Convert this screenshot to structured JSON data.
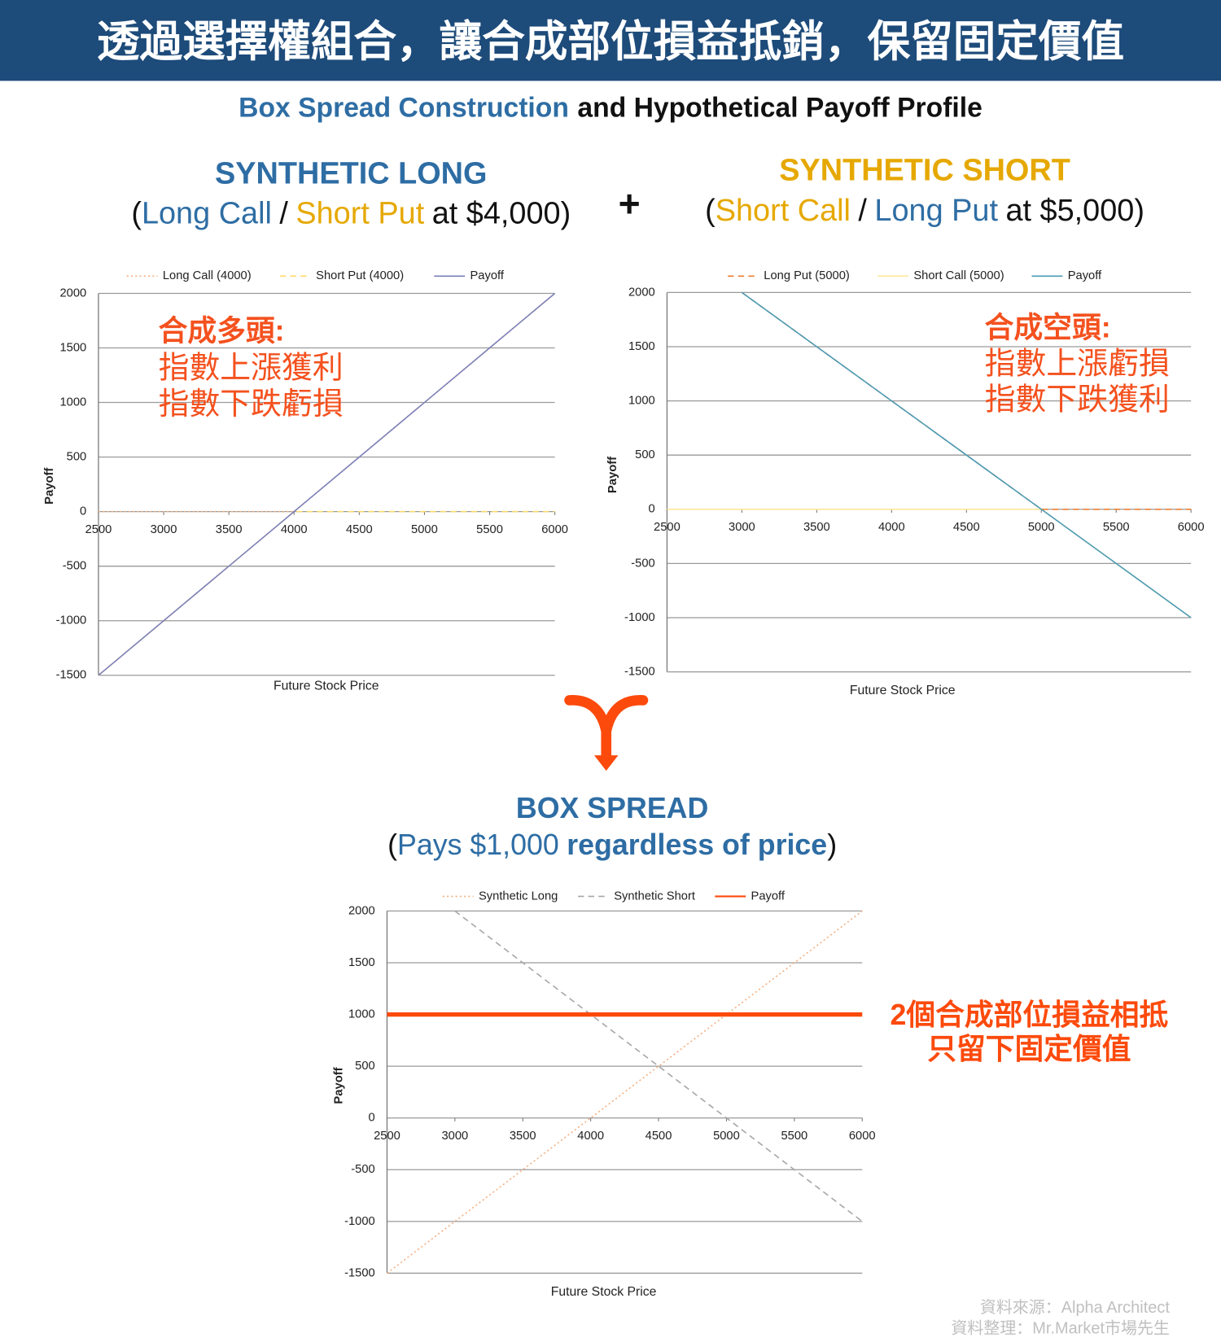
{
  "header": {
    "title": "透過選擇權組合，讓合成部位損益抵銷，保留固定價值",
    "subtitle": [
      "Box Spread Construction",
      "and Hypothetical Payoff Profile"
    ]
  },
  "panels": [
    {
      "title": "SYNTHETIC LONG",
      "subtitle": [
        "(",
        "Long Call",
        "/",
        "Short Put",
        "at $4,000)"
      ]
    },
    {
      "title": "SYNTHETIC SHORT",
      "subtitle": [
        "(",
        "Short Call",
        "/",
        "Long Put",
        "at $5,000)"
      ]
    },
    {
      "title": "BOX SPREAD",
      "subtitle": [
        "(",
        "Pays $1,000",
        "regardless of price",
        ")"
      ]
    }
  ],
  "plus": "+",
  "chart_data": [
    {
      "type": "line",
      "x_label": "Future Stock Price",
      "y_label": "Payoff",
      "x": [
        2500,
        3000,
        3500,
        4000,
        4500,
        5000,
        5500,
        6000
      ],
      "xlim": [
        2500,
        6000
      ],
      "xticks": [
        2500,
        3000,
        3500,
        4000,
        4500,
        5000,
        5500,
        6000
      ],
      "ylim": [
        -1500,
        2000
      ],
      "yticks": [
        -1500,
        -1000,
        -500,
        0,
        500,
        1000,
        1500,
        2000
      ],
      "grid": true,
      "series": [
        {
          "name": "Long Call (4000)",
          "color": "#f4b183",
          "dash": "dotted",
          "values": [
            0,
            0,
            0,
            0,
            500,
            1000,
            1500,
            2000
          ]
        },
        {
          "name": "Short Put (4000)",
          "color": "#ffd966",
          "dash": "dashed",
          "values": [
            -1500,
            -1000,
            -500,
            0,
            0,
            0,
            0,
            0
          ]
        },
        {
          "name": "Payoff",
          "color": "#7b7fb8",
          "dash": "solid",
          "values": [
            -1500,
            -1000,
            -500,
            0,
            500,
            1000,
            1500,
            2000
          ]
        }
      ],
      "annotations": [
        "合成多頭:",
        "指數上漲獲利",
        "指數下跌虧損"
      ],
      "annotation_color": "#f4511e"
    },
    {
      "type": "line",
      "x_label": "Future Stock Price",
      "y_label": "Payoff",
      "x": [
        2500,
        3000,
        3500,
        4000,
        4500,
        5000,
        5500,
        6000
      ],
      "xlim": [
        2500,
        6000
      ],
      "xticks": [
        2500,
        3000,
        3500,
        4000,
        4500,
        5000,
        5500,
        6000
      ],
      "ylim": [
        -1500,
        2000
      ],
      "yticks": [
        -1500,
        -1000,
        -500,
        0,
        500,
        1000,
        1500,
        2000
      ],
      "grid": true,
      "series": [
        {
          "name": "Long Put (5000)",
          "color": "#ed7d31",
          "dash": "dashed",
          "values": [
            null,
            2000,
            1500,
            1000,
            500,
            0,
            0,
            0
          ]
        },
        {
          "name": "Short Call (5000)",
          "color": "#ffe699",
          "dash": "solid",
          "values": [
            0,
            0,
            0,
            0,
            0,
            0,
            -500,
            -1000
          ]
        },
        {
          "name": "Payoff",
          "color": "#4a9bb5",
          "dash": "solid",
          "values": [
            null,
            2000,
            1500,
            1000,
            500,
            0,
            -500,
            -1000
          ]
        }
      ],
      "annotations": [
        "合成空頭:",
        "指數上漲虧損",
        "指數下跌獲利"
      ],
      "annotation_color": "#f4511e"
    },
    {
      "type": "line",
      "x_label": "Future Stock Price",
      "y_label": "Payoff",
      "x": [
        2500,
        3000,
        3500,
        4000,
        4500,
        5000,
        5500,
        6000
      ],
      "xlim": [
        2500,
        6000
      ],
      "xticks": [
        2500,
        3000,
        3500,
        4000,
        4500,
        5000,
        5500,
        6000
      ],
      "ylim": [
        -1500,
        2000
      ],
      "yticks": [
        -1500,
        -1000,
        -500,
        0,
        500,
        1000,
        1500,
        2000
      ],
      "grid": true,
      "series": [
        {
          "name": "Synthetic Long",
          "color": "#f4b183",
          "dash": "dotted",
          "values": [
            -1500,
            -1000,
            -500,
            0,
            500,
            1000,
            1500,
            2000
          ]
        },
        {
          "name": "Synthetic Short",
          "color": "#a6a6a6",
          "dash": "dashed",
          "values": [
            null,
            2000,
            1500,
            1000,
            500,
            0,
            -500,
            -1000
          ]
        },
        {
          "name": "Payoff",
          "color": "#fc4a0c",
          "dash": "thick",
          "values": [
            1000,
            1000,
            1000,
            1000,
            1000,
            1000,
            1000,
            1000
          ]
        }
      ],
      "annotations": [
        "2個合成部位損益相抵",
        "只留下固定價值"
      ],
      "annotation_color": "#fc4a0c"
    }
  ],
  "source": [
    "資料來源：Alpha Architect",
    "資料整理：Mr.Market市場先生"
  ]
}
